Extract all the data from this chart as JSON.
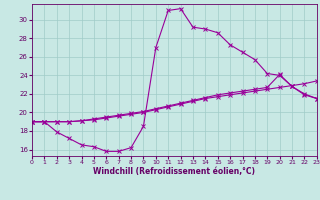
{
  "xlabel": "Windchill (Refroidissement éolien,°C)",
  "background_color": "#c8e8e4",
  "line_color": "#990099",
  "grid_color": "#a0ccc8",
  "spine_color": "#660066",
  "xlim": [
    0,
    23
  ],
  "ylim": [
    15.3,
    31.7
  ],
  "yticks": [
    16,
    18,
    20,
    22,
    24,
    26,
    28,
    30
  ],
  "xticks": [
    0,
    1,
    2,
    3,
    4,
    5,
    6,
    7,
    8,
    9,
    10,
    11,
    12,
    13,
    14,
    15,
    16,
    17,
    18,
    19,
    20,
    21,
    22,
    23
  ],
  "line1_x": [
    0,
    1,
    2,
    3,
    4,
    5,
    6,
    7,
    8,
    9,
    10,
    11,
    12,
    13,
    14,
    15,
    16,
    17,
    18,
    19,
    20,
    21,
    22,
    23
  ],
  "line1_y": [
    19.0,
    19.0,
    17.9,
    17.2,
    16.5,
    16.3,
    15.8,
    15.8,
    16.2,
    18.5,
    27.0,
    31.0,
    31.2,
    29.2,
    29.0,
    28.6,
    27.3,
    26.5,
    25.7,
    24.2,
    24.0,
    22.8,
    21.9,
    21.5
  ],
  "line2_x": [
    0,
    1,
    2,
    3,
    4,
    5,
    6,
    7,
    8,
    9,
    10,
    11,
    12,
    13,
    14,
    15,
    16,
    17,
    18,
    19,
    20,
    21,
    22,
    23
  ],
  "line2_y": [
    19.0,
    19.0,
    19.0,
    19.0,
    19.1,
    19.3,
    19.5,
    19.7,
    19.9,
    20.1,
    20.4,
    20.7,
    21.0,
    21.3,
    21.6,
    21.9,
    22.1,
    22.3,
    22.5,
    22.7,
    24.1,
    22.8,
    22.0,
    21.5
  ],
  "line3_x": [
    0,
    1,
    2,
    3,
    4,
    5,
    6,
    7,
    8,
    9,
    10,
    11,
    12,
    13,
    14,
    15,
    16,
    17,
    18,
    19,
    20,
    21,
    22,
    23
  ],
  "line3_y": [
    19.0,
    19.0,
    19.0,
    19.0,
    19.1,
    19.2,
    19.4,
    19.6,
    19.8,
    20.0,
    20.3,
    20.6,
    20.9,
    21.2,
    21.5,
    21.7,
    21.9,
    22.1,
    22.3,
    22.5,
    22.7,
    22.9,
    23.1,
    23.4
  ],
  "xlabel_fontsize": 5.5,
  "tick_fontsize": 4.5,
  "linewidth": 0.8,
  "markersize": 2.5
}
